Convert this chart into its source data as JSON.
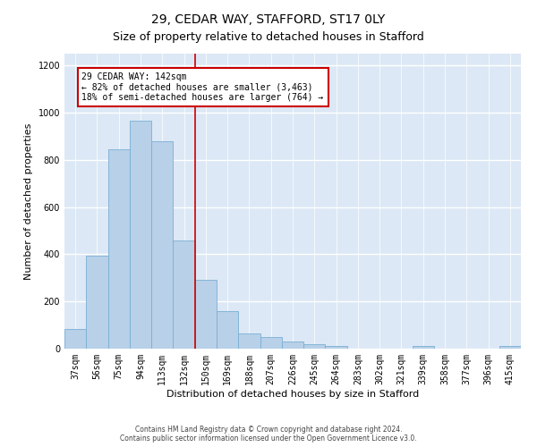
{
  "title": "29, CEDAR WAY, STAFFORD, ST17 0LY",
  "subtitle": "Size of property relative to detached houses in Stafford",
  "xlabel": "Distribution of detached houses by size in Stafford",
  "ylabel": "Number of detached properties",
  "bar_labels": [
    "37sqm",
    "56sqm",
    "75sqm",
    "94sqm",
    "113sqm",
    "132sqm",
    "150sqm",
    "169sqm",
    "188sqm",
    "207sqm",
    "226sqm",
    "245sqm",
    "264sqm",
    "283sqm",
    "302sqm",
    "321sqm",
    "339sqm",
    "358sqm",
    "377sqm",
    "396sqm",
    "415sqm"
  ],
  "bar_values": [
    85,
    395,
    845,
    965,
    880,
    460,
    290,
    160,
    65,
    48,
    30,
    20,
    10,
    0,
    0,
    0,
    10,
    0,
    0,
    0,
    13
  ],
  "bar_color": "#b8d0e8",
  "bar_edge_color": "#7aafd4",
  "vline_x": 5.5,
  "vline_color": "#cc0000",
  "annotation_text": "29 CEDAR WAY: 142sqm\n← 82% of detached houses are smaller (3,463)\n18% of semi-detached houses are larger (764) →",
  "annotation_box_color": "#ffffff",
  "annotation_box_edge": "#cc0000",
  "ylim": [
    0,
    1250
  ],
  "yticks": [
    0,
    200,
    400,
    600,
    800,
    1000,
    1200
  ],
  "footer_line1": "Contains HM Land Registry data © Crown copyright and database right 2024.",
  "footer_line2": "Contains public sector information licensed under the Open Government Licence v3.0.",
  "fig_bg_color": "#ffffff",
  "plot_bg_color": "#dce8f5",
  "grid_color": "#ffffff",
  "title_fontsize": 10,
  "subtitle_fontsize": 9,
  "label_fontsize": 8,
  "tick_fontsize": 7,
  "footer_fontsize": 5.5
}
